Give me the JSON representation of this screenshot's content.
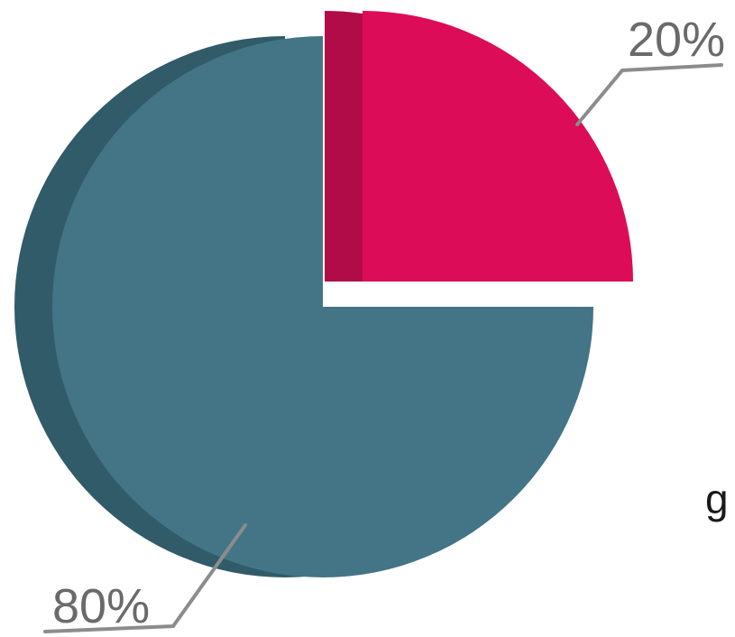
{
  "chart_data": {
    "type": "pie",
    "title": "",
    "slices": [
      {
        "label": "80%",
        "value": 80,
        "color": "#437586",
        "side_color": "#315b69",
        "exploded": false
      },
      {
        "label": "20%",
        "value": 20,
        "color": "#dc0c58",
        "side_color": "#b10c47",
        "exploded": true
      }
    ],
    "label_color": "#6a6a6a",
    "leader_color": "#8c8c8c"
  },
  "edge_text": "g"
}
